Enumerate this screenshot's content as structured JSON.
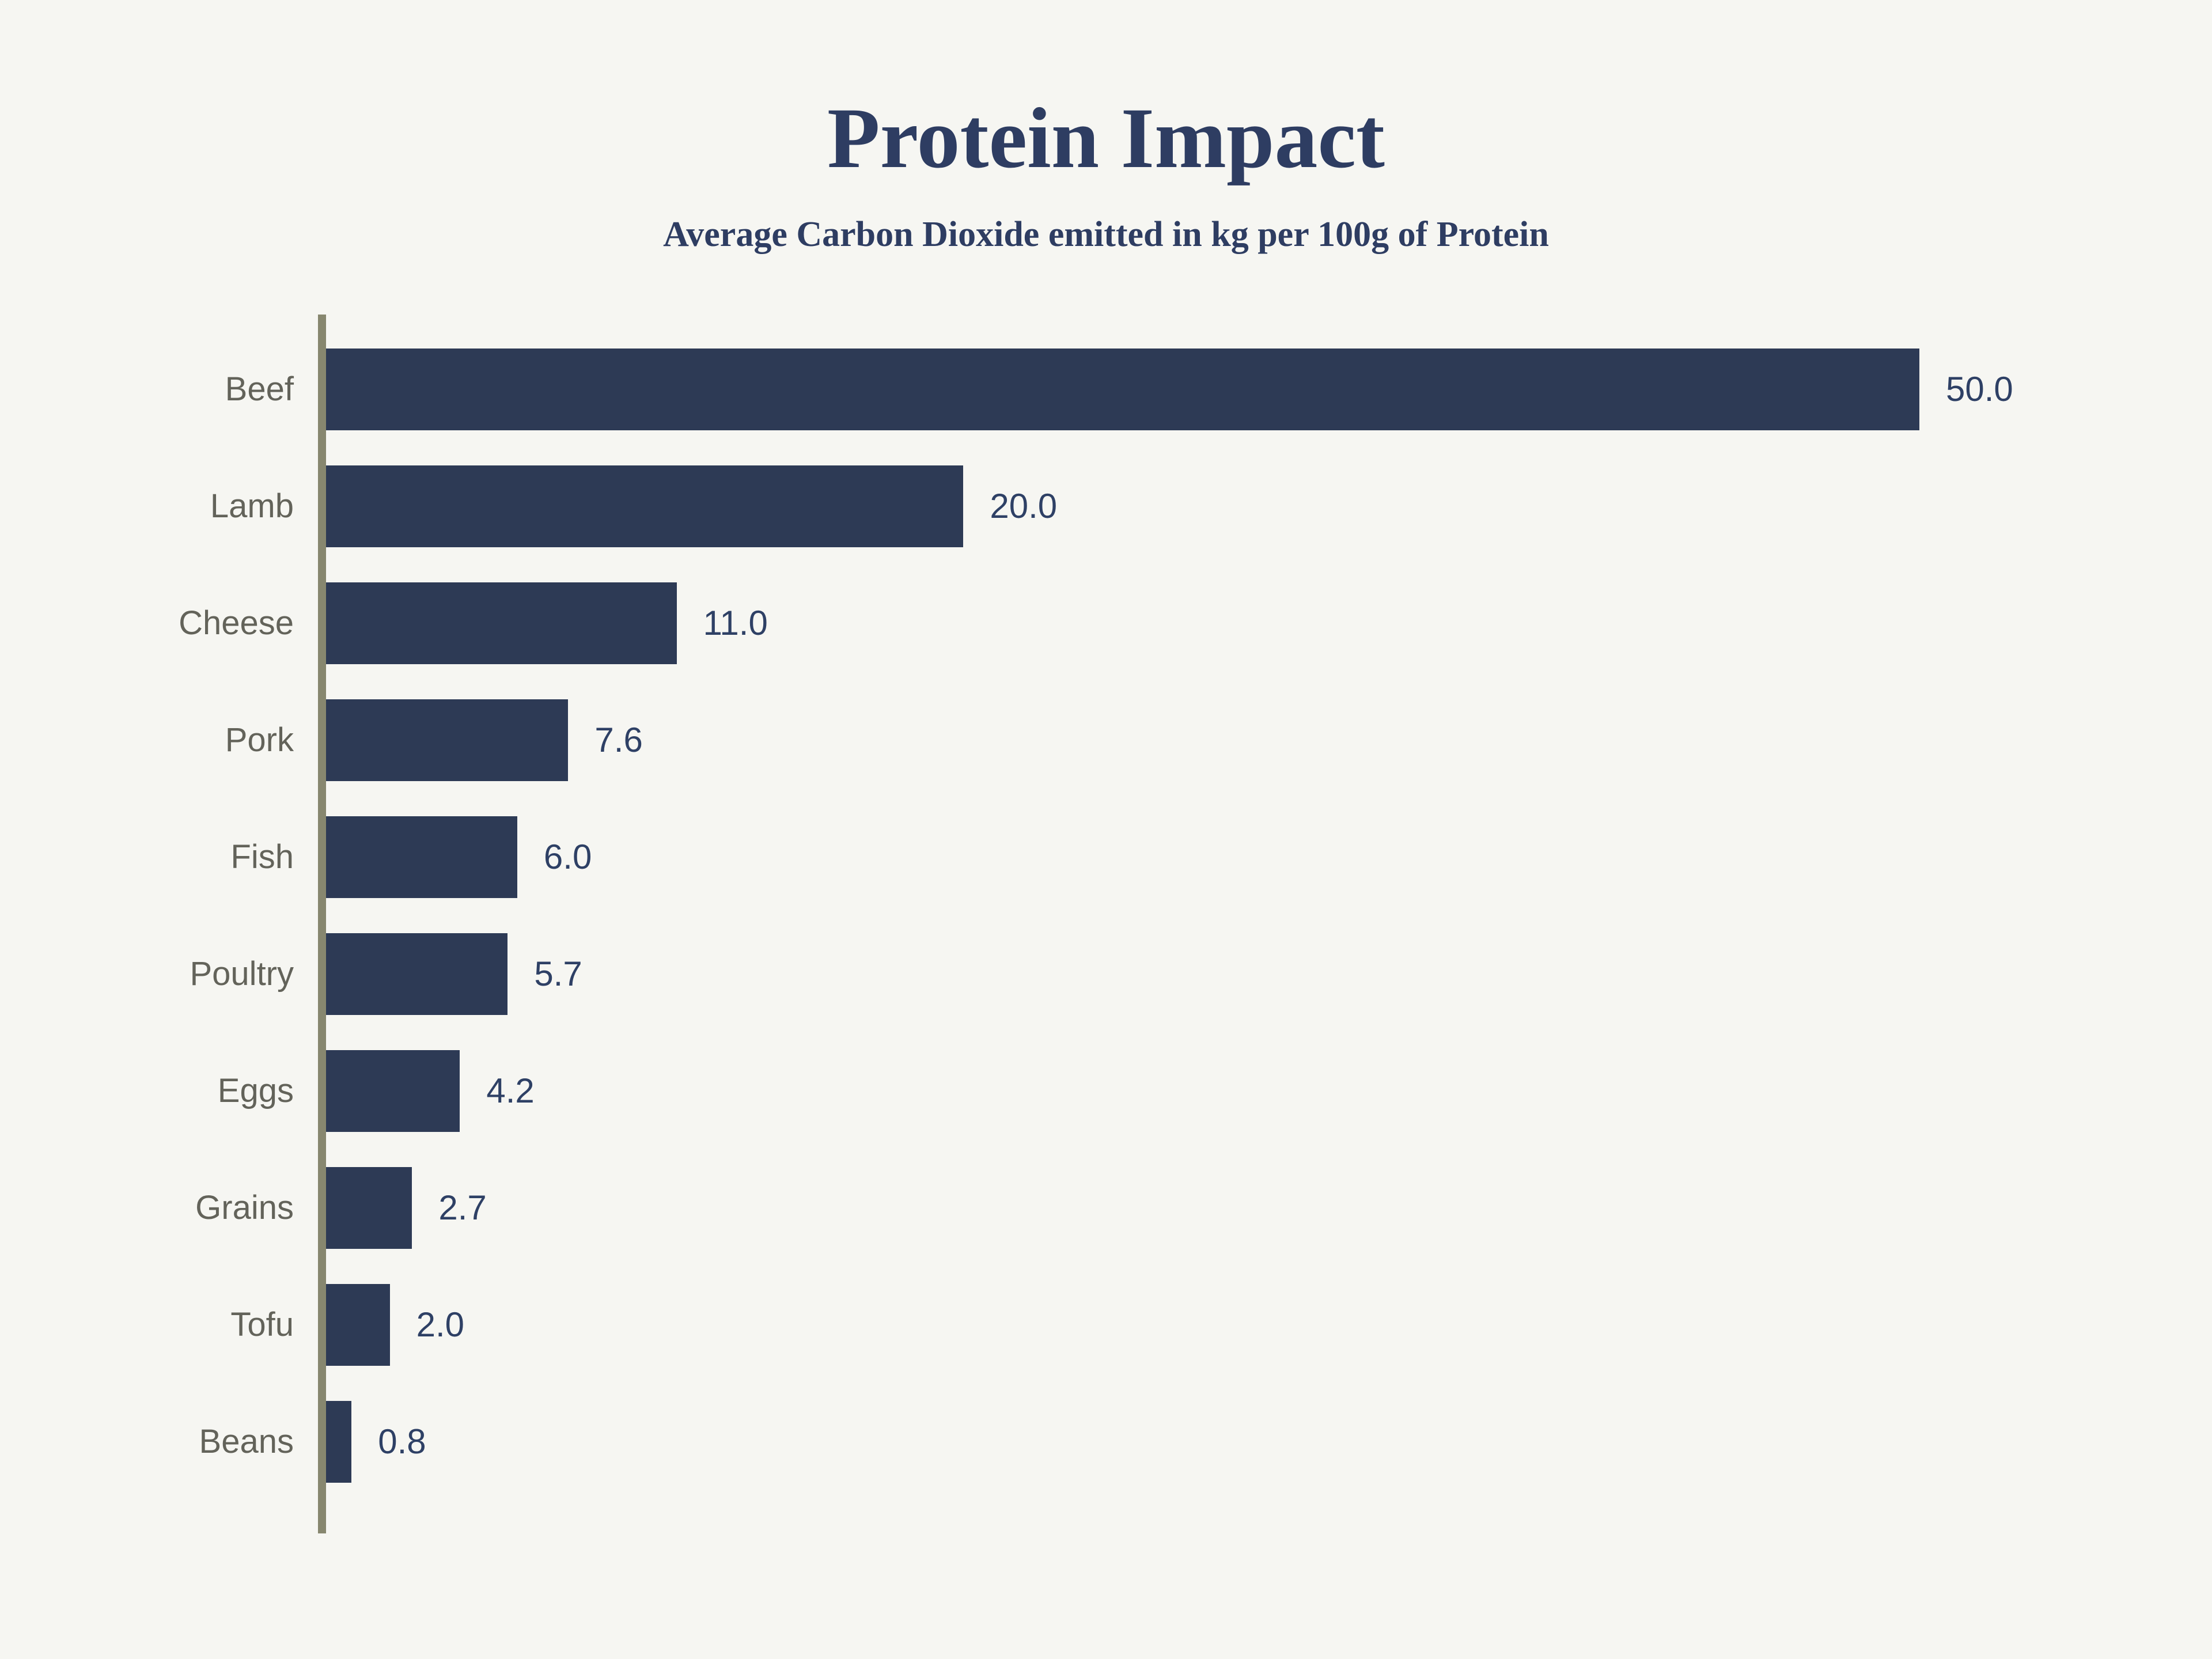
{
  "title": "Protein Impact",
  "subtitle": "Average Carbon Dioxide emitted in kg per 100g of Protein",
  "colors": {
    "background": "#f6f6f2",
    "bar": "#2d3a55",
    "axis_line": "#87876f",
    "title_text": "#2e3d62",
    "value_text": "#2e4065",
    "category_text": "#63635a"
  },
  "chart_data": {
    "type": "bar",
    "orientation": "horizontal",
    "title": "Protein Impact",
    "subtitle": "Average Carbon Dioxide emitted in kg per 100g of Protein",
    "categories": [
      "Beef",
      "Lamb",
      "Cheese",
      "Pork",
      "Fish",
      "Poultry",
      "Eggs",
      "Grains",
      "Tofu",
      "Beans"
    ],
    "values": [
      50.0,
      20.0,
      11.0,
      7.6,
      6.0,
      5.7,
      4.2,
      2.7,
      2.0,
      0.8
    ],
    "value_labels": [
      "50.0",
      "20.0",
      "11.0",
      "7.6",
      "6.0",
      "5.7",
      "4.2",
      "2.7",
      "2.0",
      "0.8"
    ],
    "xlabel": "",
    "ylabel": "",
    "xlim": [
      0,
      50
    ],
    "grid": false,
    "legend": false,
    "value_labels_position": "end-of-bar",
    "category_labels_position": "left"
  }
}
